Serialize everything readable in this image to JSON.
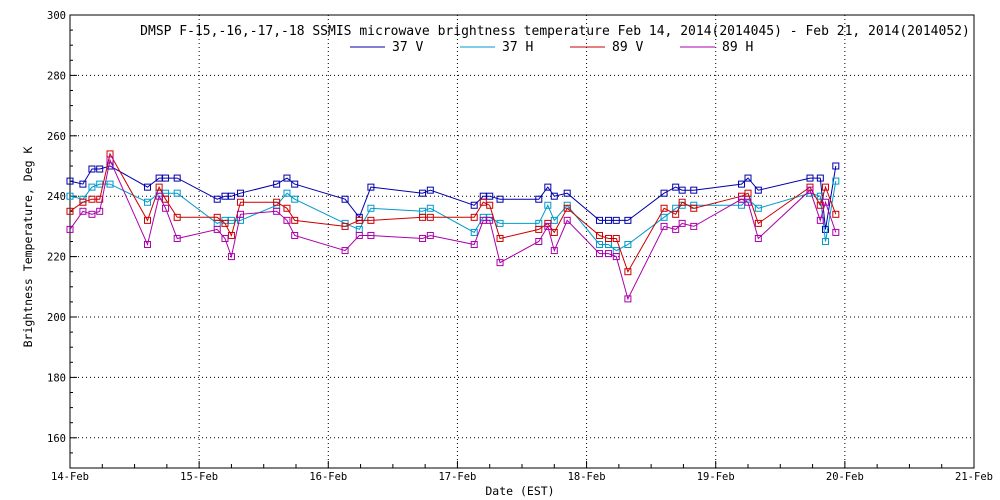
{
  "chart_data": {
    "type": "line",
    "title": "DMSP F-15,-16,-17,-18 SSMIS microwave brightness temperature Feb 14, 2014(2014045) - Feb 21, 2014(2014052)",
    "xlabel": "Date (EST)",
    "ylabel": "Brightness Temperature, Deg K",
    "xlim": [
      0,
      7
    ],
    "ylim": [
      150,
      300
    ],
    "x_tick_labels": [
      "14-Feb",
      "15-Feb",
      "16-Feb",
      "17-Feb",
      "18-Feb",
      "19-Feb",
      "20-Feb",
      "21-Feb"
    ],
    "y_ticks": [
      160,
      180,
      200,
      220,
      240,
      260,
      280,
      300
    ],
    "grid": true,
    "legend_position": "top-center",
    "series": [
      {
        "name": "37 V",
        "color": "#0000aa",
        "points": [
          [
            0.0,
            245
          ],
          [
            0.1,
            244
          ],
          [
            0.17,
            249
          ],
          [
            0.23,
            249
          ],
          [
            0.31,
            250
          ],
          [
            0.6,
            243
          ],
          [
            0.69,
            246
          ],
          [
            0.74,
            246
          ],
          [
            0.83,
            246
          ],
          [
            1.14,
            239
          ],
          [
            1.2,
            240
          ],
          [
            1.25,
            240
          ],
          [
            1.32,
            241
          ],
          [
            1.6,
            244
          ],
          [
            1.68,
            246
          ],
          [
            1.74,
            244
          ],
          [
            2.13,
            239
          ],
          [
            2.24,
            233
          ],
          [
            2.33,
            243
          ],
          [
            2.73,
            241
          ],
          [
            2.79,
            242
          ],
          [
            3.13,
            237
          ],
          [
            3.2,
            240
          ],
          [
            3.25,
            240
          ],
          [
            3.33,
            239
          ],
          [
            3.63,
            239
          ],
          [
            3.7,
            243
          ],
          [
            3.75,
            240
          ],
          [
            3.85,
            241
          ],
          [
            4.1,
            232
          ],
          [
            4.17,
            232
          ],
          [
            4.23,
            232
          ],
          [
            4.32,
            232
          ],
          [
            4.6,
            241
          ],
          [
            4.69,
            243
          ],
          [
            4.74,
            242
          ],
          [
            4.83,
            242
          ],
          [
            5.2,
            244
          ],
          [
            5.25,
            246
          ],
          [
            5.33,
            242
          ],
          [
            5.73,
            246
          ],
          [
            5.81,
            246
          ],
          [
            5.85,
            229
          ],
          [
            5.93,
            250
          ]
        ]
      },
      {
        "name": "37 H",
        "color": "#0099cc",
        "points": [
          [
            0.0,
            240
          ],
          [
            0.1,
            239
          ],
          [
            0.17,
            243
          ],
          [
            0.23,
            244
          ],
          [
            0.31,
            244
          ],
          [
            0.6,
            238
          ],
          [
            0.69,
            241
          ],
          [
            0.74,
            241
          ],
          [
            0.83,
            241
          ],
          [
            1.14,
            231
          ],
          [
            1.2,
            232
          ],
          [
            1.25,
            232
          ],
          [
            1.32,
            232
          ],
          [
            1.6,
            237
          ],
          [
            1.68,
            241
          ],
          [
            1.74,
            239
          ],
          [
            2.13,
            231
          ],
          [
            2.24,
            229
          ],
          [
            2.33,
            236
          ],
          [
            2.73,
            235
          ],
          [
            2.79,
            236
          ],
          [
            3.13,
            228
          ],
          [
            3.2,
            233
          ],
          [
            3.25,
            233
          ],
          [
            3.33,
            231
          ],
          [
            3.63,
            231
          ],
          [
            3.7,
            237
          ],
          [
            3.75,
            232
          ],
          [
            3.85,
            237
          ],
          [
            4.1,
            224
          ],
          [
            4.17,
            224
          ],
          [
            4.23,
            222
          ],
          [
            4.32,
            224
          ],
          [
            4.6,
            233
          ],
          [
            4.69,
            236
          ],
          [
            4.74,
            237
          ],
          [
            4.83,
            237
          ],
          [
            5.2,
            237
          ],
          [
            5.25,
            239
          ],
          [
            5.33,
            236
          ],
          [
            5.73,
            241
          ],
          [
            5.81,
            240
          ],
          [
            5.85,
            225
          ],
          [
            5.93,
            245
          ]
        ]
      },
      {
        "name": "89 V",
        "color": "#cc0000",
        "points": [
          [
            0.0,
            235
          ],
          [
            0.1,
            238
          ],
          [
            0.17,
            239
          ],
          [
            0.23,
            239
          ],
          [
            0.31,
            254
          ],
          [
            0.6,
            232
          ],
          [
            0.69,
            243
          ],
          [
            0.74,
            239
          ],
          [
            0.83,
            233
          ],
          [
            1.14,
            233
          ],
          [
            1.2,
            231
          ],
          [
            1.25,
            227
          ],
          [
            1.32,
            238
          ],
          [
            1.6,
            238
          ],
          [
            1.68,
            236
          ],
          [
            1.74,
            232
          ],
          [
            2.13,
            230
          ],
          [
            2.24,
            232
          ],
          [
            2.33,
            232
          ],
          [
            2.73,
            233
          ],
          [
            2.79,
            233
          ],
          [
            3.13,
            233
          ],
          [
            3.2,
            238
          ],
          [
            3.25,
            237
          ],
          [
            3.33,
            226
          ],
          [
            3.63,
            229
          ],
          [
            3.7,
            231
          ],
          [
            3.75,
            228
          ],
          [
            3.85,
            236
          ],
          [
            4.1,
            227
          ],
          [
            4.17,
            226
          ],
          [
            4.23,
            226
          ],
          [
            4.32,
            215
          ],
          [
            4.6,
            236
          ],
          [
            4.69,
            234
          ],
          [
            4.74,
            238
          ],
          [
            4.83,
            236
          ],
          [
            5.2,
            240
          ],
          [
            5.25,
            241
          ],
          [
            5.33,
            231
          ],
          [
            5.73,
            243
          ],
          [
            5.81,
            237
          ],
          [
            5.85,
            243
          ],
          [
            5.93,
            234
          ]
        ]
      },
      {
        "name": "89 H",
        "color": "#aa00aa",
        "points": [
          [
            0.0,
            229
          ],
          [
            0.1,
            235
          ],
          [
            0.17,
            234
          ],
          [
            0.23,
            235
          ],
          [
            0.31,
            252
          ],
          [
            0.6,
            224
          ],
          [
            0.69,
            240
          ],
          [
            0.74,
            236
          ],
          [
            0.83,
            226
          ],
          [
            1.14,
            229
          ],
          [
            1.2,
            226
          ],
          [
            1.25,
            220
          ],
          [
            1.32,
            234
          ],
          [
            1.6,
            235
          ],
          [
            1.68,
            232
          ],
          [
            1.74,
            227
          ],
          [
            2.13,
            222
          ],
          [
            2.24,
            227
          ],
          [
            2.33,
            227
          ],
          [
            2.73,
            226
          ],
          [
            2.79,
            227
          ],
          [
            3.13,
            224
          ],
          [
            3.2,
            232
          ],
          [
            3.25,
            232
          ],
          [
            3.33,
            218
          ],
          [
            3.63,
            225
          ],
          [
            3.7,
            230
          ],
          [
            3.75,
            222
          ],
          [
            3.85,
            232
          ],
          [
            4.1,
            221
          ],
          [
            4.17,
            221
          ],
          [
            4.23,
            220
          ],
          [
            4.32,
            206
          ],
          [
            4.6,
            230
          ],
          [
            4.69,
            229
          ],
          [
            4.74,
            231
          ],
          [
            4.83,
            230
          ],
          [
            5.2,
            239
          ],
          [
            5.25,
            238
          ],
          [
            5.33,
            226
          ],
          [
            5.73,
            242
          ],
          [
            5.81,
            232
          ],
          [
            5.85,
            238
          ],
          [
            5.93,
            228
          ]
        ]
      }
    ]
  }
}
